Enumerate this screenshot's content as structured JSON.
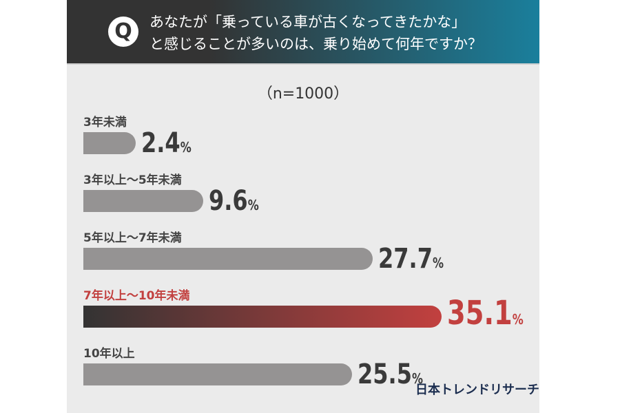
{
  "header": {
    "badge": "Q",
    "line1": "あなたが「乗っている車が古くなってきたかな」",
    "line2": "と感じることが多いのは、乗り始めて何年ですか？"
  },
  "sample": "（n=1000）",
  "logo": "日本トレンドリサーチ",
  "chart_data": {
    "type": "bar",
    "orientation": "horizontal",
    "categories": [
      "3年未満",
      "3年以上〜5年未満",
      "5年以上〜7年未満",
      "7年以上〜10年未満",
      "10年以上"
    ],
    "values": [
      2.4,
      9.6,
      27.7,
      35.1,
      25.5
    ],
    "value_labels": [
      "2.4",
      "9.6",
      "27.7",
      "35.1",
      "25.5"
    ],
    "unit": "%",
    "highlight_index": 3,
    "colors": {
      "bar": "#959393",
      "highlight_start": "#333333",
      "highlight_end": "#c2403f",
      "highlight_text": "#c2403f",
      "text": "#3a3a3a"
    }
  }
}
